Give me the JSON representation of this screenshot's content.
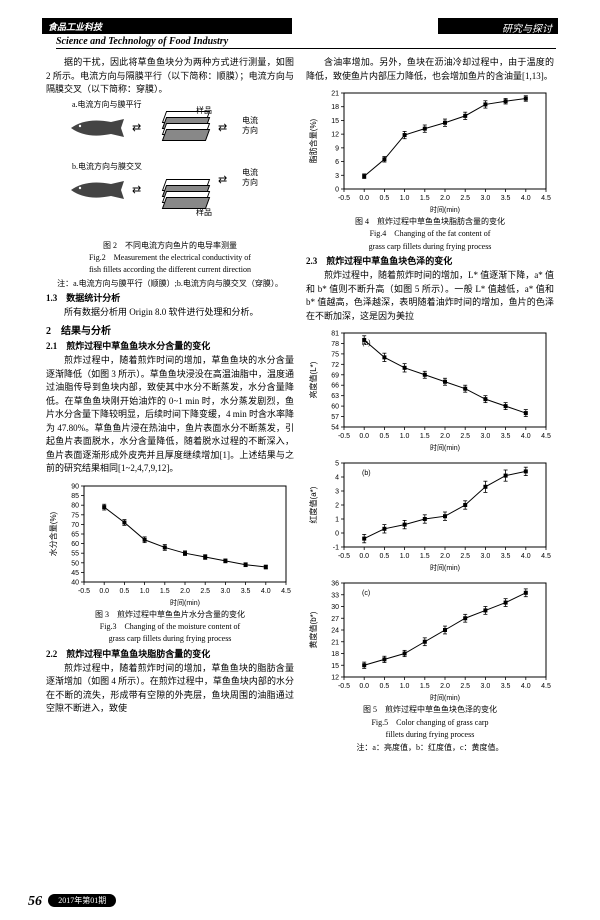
{
  "header": {
    "left": "食品工业科技",
    "right": "研究与探讨",
    "journal_en": "Science and Technology of Food Industry"
  },
  "left_col": {
    "p1": "据的干扰，因此将草鱼鱼块分为两种方式进行测量，如图 2 所示。电流方向与隔膜平行（以下简称：顺膜）；电流方向与隔膜交叉（以下简称：穿膜）。",
    "diag": {
      "a": "a.电流方向与膜平行",
      "b": "b.电流方向与膜交叉",
      "sample": "样品",
      "current": "电流",
      "direction": "方向"
    },
    "fig2_cn": "图 2　不同电流方向鱼片的电导率测量",
    "fig2_en1": "Fig.2　Measurement the electrical conductivity of",
    "fig2_en2": "fish fillets according the different current direction",
    "fig2_note": "注：a.电流方向与膜平行（顺膜）;b.电流方向与膜交叉（穿膜）。",
    "sec13": "1.3　数据统计分析",
    "p13": "所有数据分析用 Origin 8.0 软件进行处理和分析。",
    "sec2": "2　结果与分析",
    "sec21": "2.1　煎炸过程中草鱼鱼块水分含量的变化",
    "p21": "煎炸过程中，随着煎炸时间的增加，草鱼鱼块的水分含量逐渐降低（如图 3 所示）。草鱼鱼块浸没在高温油脂中，温度通过油脂传导到鱼块内部，致使其中水分不断蒸发，水分含量降低。在草鱼鱼块刚开始油炸的 0~1 min 时，水分蒸发剧烈，鱼片水分含量下降较明显，后续时间下降变缓，4 min 时含水率降为 47.80%。草鱼鱼片浸在热油中，鱼片表面水分不断蒸发，引起鱼片表面脱水，水分含量降低，随着脱水过程的不断深入，鱼片表面逐渐形成外皮壳并且厚度继续增加[1]。上述结果与之前的研究结果相同[1~2,4,7,9,12]。",
    "fig3_cn": "图 3　煎炸过程中草鱼鱼片水分含量的变化",
    "fig3_en1": "Fig.3　Changing of the moisture content of",
    "fig3_en2": "grass carp fillets during frying process",
    "sec22": "2.2　煎炸过程中草鱼鱼块脂肪含量的变化",
    "p22": "煎炸过程中，随着煎炸时间的增加，草鱼鱼块的脂肪含量逐渐增加（如图 4 所示）。在煎炸过程中，草鱼鱼块内部的水分在不断的流失，形成带有空隙的外壳层，鱼块周围的油脂通过空隙不断进入，致使"
  },
  "right_col": {
    "p_top": "含油率增加。另外，鱼块在沥油冷却过程中，由于温度的降低，致使鱼片内部压力降低，也会增加鱼片的含油量[1,13]。",
    "fig4_cn": "图 4　煎炸过程中草鱼鱼块脂肪含量的变化",
    "fig4_en1": "Fig.4　Changing of the fat content of",
    "fig4_en2": "grass carp fillets during frying process",
    "sec23": "2.3　煎炸过程中草鱼鱼块色泽的变化",
    "p23": "煎炸过程中，随着煎炸时间的增加，L* 值逐渐下降，a* 值和 b* 值则不断升高（如图 5 所示）。一般 L* 值越低，a* 值和 b* 值越高，色泽越深，表明随着油炸时间的增加，鱼片的色泽在不断加深，这是因为美拉",
    "fig5_cn": "图 5　煎炸过程中草鱼鱼块色泽的变化",
    "fig5_en1": "Fig.5　Color changing of grass carp",
    "fig5_en2": "fillets during frying process",
    "fig5_note": "注：a：亮度值，b：红度值，c：黄度值。"
  },
  "charts": {
    "xlabel": "时间(min)",
    "xticks": [
      "-0.5",
      "0.0",
      "0.5",
      "1.0",
      "1.5",
      "2.0",
      "2.5",
      "3.0",
      "3.5",
      "4.0",
      "4.5"
    ],
    "fig3": {
      "ylabel": "水分含量(%)",
      "ylim": [
        40,
        90
      ],
      "yticks": [
        40,
        45,
        50,
        55,
        60,
        65,
        70,
        75,
        80,
        85,
        90
      ],
      "x": [
        0,
        0.5,
        1.0,
        1.5,
        2.0,
        2.5,
        3.0,
        3.5,
        4.0
      ],
      "y": [
        79,
        71,
        62,
        58,
        55,
        53,
        51,
        49,
        47.8
      ],
      "err": [
        1.5,
        1.5,
        1.5,
        1.5,
        1.2,
        1.2,
        1.0,
        1.0,
        1.0
      ]
    },
    "fig4": {
      "ylabel": "脂肪含量(%)",
      "ylim": [
        0,
        21
      ],
      "yticks": [
        0,
        3,
        6,
        9,
        12,
        15,
        18,
        21
      ],
      "x": [
        0,
        0.5,
        1.0,
        1.5,
        2.0,
        2.5,
        3.0,
        3.5,
        4.0
      ],
      "y": [
        2.8,
        6.5,
        11.8,
        13.2,
        14.5,
        16.0,
        18.5,
        19.2,
        19.8
      ],
      "err": [
        0.5,
        0.6,
        0.8,
        0.8,
        0.8,
        0.8,
        0.8,
        0.6,
        0.6
      ]
    },
    "fig5a": {
      "ylabel": "亮度值(L*)",
      "tag": "(a)",
      "ylim": [
        54,
        81
      ],
      "yticks": [
        54,
        57,
        60,
        63,
        66,
        69,
        72,
        75,
        78,
        81
      ],
      "x": [
        0,
        0.5,
        1.0,
        1.5,
        2.0,
        2.5,
        3.0,
        3.5,
        4.0
      ],
      "y": [
        79,
        74,
        71,
        69,
        67,
        65,
        62,
        60,
        58
      ],
      "err": [
        1.2,
        1.2,
        1.2,
        1.0,
        1.0,
        1.0,
        1.0,
        1.0,
        1.0
      ]
    },
    "fig5b": {
      "ylabel": "红度值(a*)",
      "tag": "(b)",
      "ylim": [
        -1,
        5
      ],
      "yticks": [
        -1,
        0,
        1,
        2,
        3,
        4,
        5
      ],
      "x": [
        0,
        0.5,
        1.0,
        1.5,
        2.0,
        2.5,
        3.0,
        3.5,
        4.0
      ],
      "y": [
        -0.4,
        0.3,
        0.6,
        1.0,
        1.2,
        2.0,
        3.3,
        4.1,
        4.4
      ],
      "err": [
        0.3,
        0.3,
        0.3,
        0.3,
        0.3,
        0.3,
        0.4,
        0.4,
        0.3
      ]
    },
    "fig5c": {
      "ylabel": "黄度值(b*)",
      "tag": "(c)",
      "ylim": [
        12,
        36
      ],
      "yticks": [
        12,
        15,
        18,
        21,
        24,
        27,
        30,
        33,
        36
      ],
      "x": [
        0,
        0.5,
        1.0,
        1.5,
        2.0,
        2.5,
        3.0,
        3.5,
        4.0
      ],
      "y": [
        15,
        16.5,
        18,
        21,
        24,
        27,
        29,
        31,
        33.5
      ],
      "err": [
        0.8,
        0.8,
        0.8,
        1.0,
        1.0,
        1.0,
        1.0,
        1.0,
        1.0
      ]
    }
  },
  "footer": {
    "page": "56",
    "issue": "2017年第01期"
  }
}
